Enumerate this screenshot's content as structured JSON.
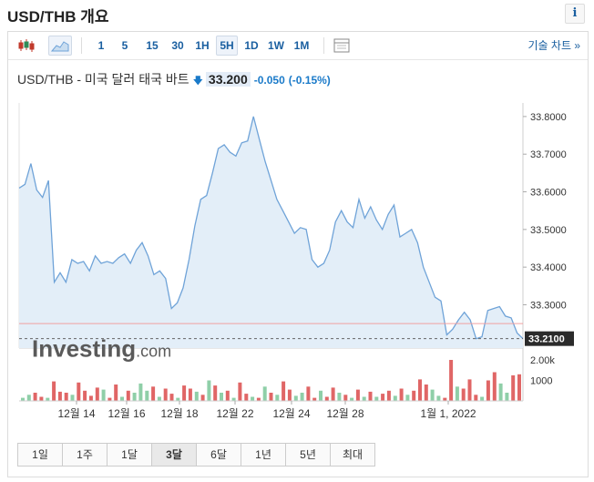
{
  "page_title": "USD/THB 개요",
  "info_label": "i",
  "toolbar": {
    "intervals": [
      {
        "label": "1",
        "active": false
      },
      {
        "label": "5",
        "active": false
      },
      {
        "label": "15",
        "active": false
      },
      {
        "label": "30",
        "active": false
      },
      {
        "label": "1H",
        "active": false
      },
      {
        "label": "5H",
        "active": true
      },
      {
        "label": "1D",
        "active": false
      },
      {
        "label": "1W",
        "active": false
      },
      {
        "label": "1M",
        "active": false
      }
    ],
    "full_chart_label": "기술 차트 »"
  },
  "instrument": {
    "name": "USD/THB - 미국 달러 태국 바트",
    "price": "33.200",
    "change": "-0.050",
    "change_pct": "(-0.15%)",
    "arrow": "🡇"
  },
  "chart_data": {
    "type": "area",
    "x_ticks": [
      "12월 14",
      "12월 16",
      "12월 18",
      "12월 22",
      "12월 24",
      "12월 28",
      "1월 1, 2022"
    ],
    "y_ticks": [
      "33.8000",
      "33.7000",
      "33.6000",
      "33.5000",
      "33.4000",
      "33.3000"
    ],
    "ylim": [
      33.185,
      33.836
    ],
    "reference_price": 33.25,
    "current_price_label": "33.2100",
    "current_price": 33.21,
    "watermark": "Investing.com",
    "price": [
      33.61,
      33.62,
      33.675,
      33.605,
      33.585,
      33.63,
      33.36,
      33.385,
      33.36,
      33.42,
      33.41,
      33.415,
      33.39,
      33.43,
      33.41,
      33.415,
      33.41,
      33.425,
      33.435,
      33.41,
      33.445,
      33.465,
      33.43,
      33.38,
      33.39,
      33.37,
      33.29,
      33.305,
      33.345,
      33.42,
      33.51,
      33.58,
      33.59,
      33.65,
      33.715,
      33.725,
      33.705,
      33.695,
      33.73,
      33.735,
      33.8,
      33.74,
      33.68,
      33.63,
      33.58,
      33.55,
      33.52,
      33.49,
      33.505,
      33.5,
      33.42,
      33.4,
      33.41,
      33.445,
      33.52,
      33.55,
      33.52,
      33.505,
      33.58,
      33.53,
      33.56,
      33.525,
      33.5,
      33.54,
      33.565,
      33.48,
      33.49,
      33.5,
      33.465,
      33.4,
      33.36,
      33.32,
      33.31,
      33.22,
      33.235,
      33.26,
      33.28,
      33.26,
      33.21,
      33.215,
      33.285,
      33.29,
      33.295,
      33.27,
      33.265,
      33.225,
      33.21
    ],
    "volume_ticks": [
      "2.00k",
      "1000"
    ],
    "volume_max": 2000,
    "volume": [
      {
        "v": 150,
        "c": "g"
      },
      {
        "v": 300,
        "c": "g"
      },
      {
        "v": 400,
        "c": "r"
      },
      {
        "v": 200,
        "c": "r"
      },
      {
        "v": 150,
        "c": "g"
      },
      {
        "v": 950,
        "c": "r"
      },
      {
        "v": 450,
        "c": "r"
      },
      {
        "v": 400,
        "c": "r"
      },
      {
        "v": 300,
        "c": "g"
      },
      {
        "v": 900,
        "c": "r"
      },
      {
        "v": 500,
        "c": "r"
      },
      {
        "v": 250,
        "c": "r"
      },
      {
        "v": 650,
        "c": "r"
      },
      {
        "v": 550,
        "c": "g"
      },
      {
        "v": 150,
        "c": "r"
      },
      {
        "v": 800,
        "c": "r"
      },
      {
        "v": 200,
        "c": "g"
      },
      {
        "v": 500,
        "c": "r"
      },
      {
        "v": 400,
        "c": "g"
      },
      {
        "v": 850,
        "c": "g"
      },
      {
        "v": 500,
        "c": "g"
      },
      {
        "v": 700,
        "c": "r"
      },
      {
        "v": 200,
        "c": "g"
      },
      {
        "v": 600,
        "c": "r"
      },
      {
        "v": 350,
        "c": "r"
      },
      {
        "v": 150,
        "c": "g"
      },
      {
        "v": 750,
        "c": "r"
      },
      {
        "v": 600,
        "c": "r"
      },
      {
        "v": 450,
        "c": "g"
      },
      {
        "v": 300,
        "c": "r"
      },
      {
        "v": 1000,
        "c": "g"
      },
      {
        "v": 750,
        "c": "r"
      },
      {
        "v": 400,
        "c": "g"
      },
      {
        "v": 500,
        "c": "r"
      },
      {
        "v": 150,
        "c": "g"
      },
      {
        "v": 900,
        "c": "r"
      },
      {
        "v": 350,
        "c": "r"
      },
      {
        "v": 200,
        "c": "g"
      },
      {
        "v": 150,
        "c": "r"
      },
      {
        "v": 700,
        "c": "g"
      },
      {
        "v": 400,
        "c": "r"
      },
      {
        "v": 300,
        "c": "g"
      },
      {
        "v": 950,
        "c": "r"
      },
      {
        "v": 550,
        "c": "r"
      },
      {
        "v": 250,
        "c": "g"
      },
      {
        "v": 400,
        "c": "g"
      },
      {
        "v": 700,
        "c": "r"
      },
      {
        "v": 150,
        "c": "r"
      },
      {
        "v": 500,
        "c": "g"
      },
      {
        "v": 200,
        "c": "r"
      },
      {
        "v": 650,
        "c": "r"
      },
      {
        "v": 400,
        "c": "g"
      },
      {
        "v": 300,
        "c": "r"
      },
      {
        "v": 150,
        "c": "g"
      },
      {
        "v": 550,
        "c": "r"
      },
      {
        "v": 200,
        "c": "g"
      },
      {
        "v": 450,
        "c": "r"
      },
      {
        "v": 200,
        "c": "g"
      },
      {
        "v": 350,
        "c": "r"
      },
      {
        "v": 500,
        "c": "r"
      },
      {
        "v": 250,
        "c": "g"
      },
      {
        "v": 600,
        "c": "r"
      },
      {
        "v": 300,
        "c": "g"
      },
      {
        "v": 500,
        "c": "r"
      },
      {
        "v": 1050,
        "c": "r"
      },
      {
        "v": 800,
        "c": "r"
      },
      {
        "v": 550,
        "c": "g"
      },
      {
        "v": 250,
        "c": "g"
      },
      {
        "v": 150,
        "c": "r"
      },
      {
        "v": 2000,
        "c": "r"
      },
      {
        "v": 700,
        "c": "g"
      },
      {
        "v": 600,
        "c": "r"
      },
      {
        "v": 1050,
        "c": "r"
      },
      {
        "v": 300,
        "c": "r"
      },
      {
        "v": 200,
        "c": "g"
      },
      {
        "v": 1000,
        "c": "r"
      },
      {
        "v": 1400,
        "c": "r"
      },
      {
        "v": 850,
        "c": "g"
      },
      {
        "v": 400,
        "c": "g"
      },
      {
        "v": 1250,
        "c": "r"
      },
      {
        "v": 1300,
        "c": "r"
      }
    ]
  },
  "ranges": [
    {
      "label": "1일",
      "active": false
    },
    {
      "label": "1주",
      "active": false
    },
    {
      "label": "1달",
      "active": false
    },
    {
      "label": "3달",
      "active": true
    },
    {
      "label": "6달",
      "active": false
    },
    {
      "label": "1년",
      "active": false
    },
    {
      "label": "5년",
      "active": false
    },
    {
      "label": "최대",
      "active": false
    }
  ],
  "colors": {
    "line": "#6fa3d8",
    "area": "#e3eef8",
    "up": "#8fcfa8",
    "down": "#e06666",
    "reference": "#f2a0a0",
    "link": "#1a5fa0"
  }
}
